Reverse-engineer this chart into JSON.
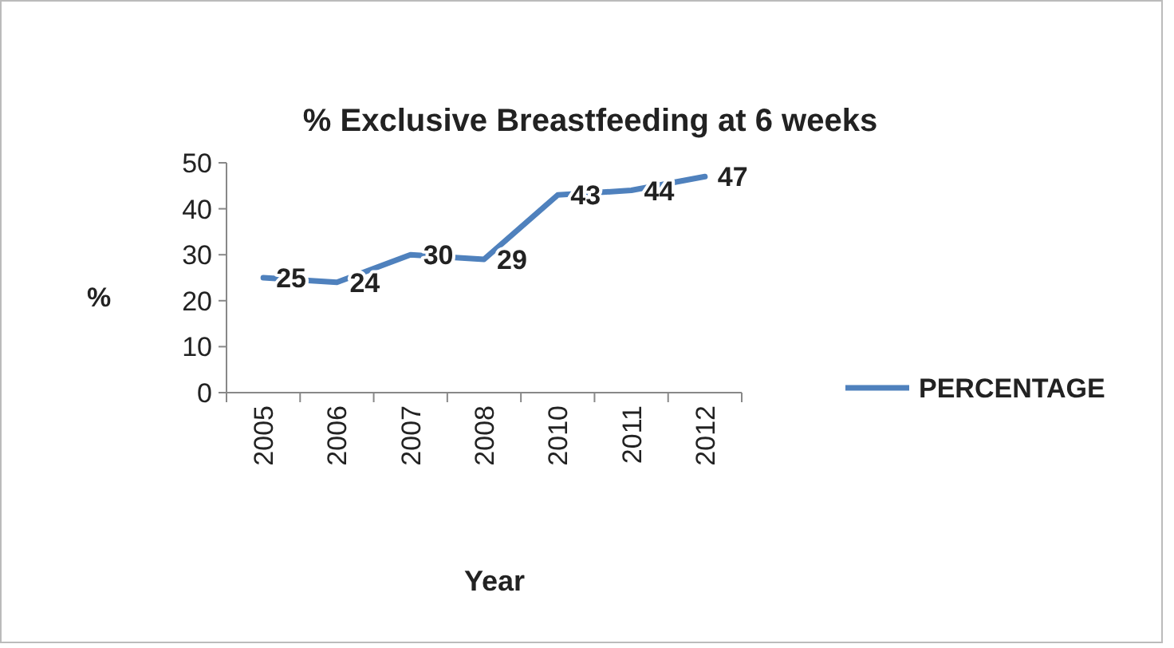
{
  "chart_data": {
    "type": "line",
    "title": "% Exclusive Breastfeeding at 6 weeks",
    "xlabel": "Year",
    "ylabel": "%",
    "categories": [
      "2005",
      "2006",
      "2007",
      "2008",
      "2010",
      "2011",
      "2012"
    ],
    "series": [
      {
        "name": "PERCENTAGE",
        "color": "#4f81bd",
        "values": [
          25,
          24,
          30,
          29,
          43,
          44,
          47
        ]
      }
    ],
    "ylim": [
      0,
      50
    ],
    "yticks": [
      0,
      10,
      20,
      30,
      40,
      50
    ],
    "data_labels": true,
    "legend": "right",
    "grid": false,
    "marker": "none",
    "line_style": "solid"
  }
}
